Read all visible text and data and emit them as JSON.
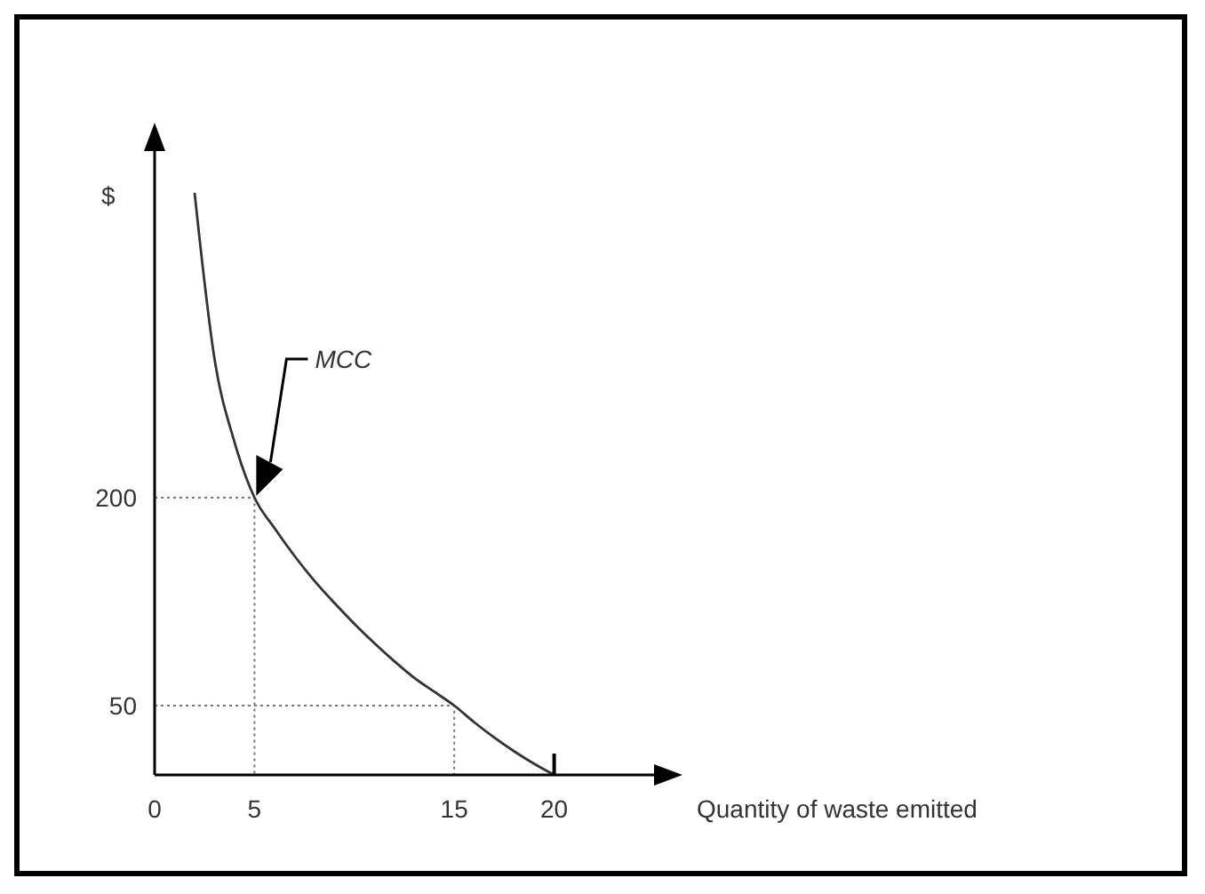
{
  "chart_data": {
    "type": "line",
    "xlabel": "Quantity of waste emitted",
    "ylabel": "$",
    "xlim": [
      0,
      25
    ],
    "ylim": [
      0,
      450
    ],
    "xticks": [
      0,
      5,
      15,
      20
    ],
    "yticks": [
      50,
      200
    ],
    "annotations": [
      "MCC"
    ],
    "series": [
      {
        "color": "#333333",
        "x": [
          2,
          3,
          4,
          5,
          6,
          7,
          8,
          9,
          10,
          11,
          12,
          13,
          14,
          15,
          16,
          17,
          18,
          19,
          20
        ],
        "values": [
          420,
          300,
          240,
          200,
          178,
          158,
          140,
          124,
          109,
          95,
          82,
          70,
          60,
          50,
          38,
          27,
          17,
          8,
          0
        ]
      },
      {
        "line_style": "dotted",
        "color": "#777777",
        "x": [
          0,
          5,
          5
        ],
        "values": [
          200,
          200,
          0
        ]
      },
      {
        "line_style": "dotted",
        "color": "#777777",
        "x": [
          0,
          15,
          15
        ],
        "values": [
          50,
          50,
          0
        ]
      }
    ]
  }
}
